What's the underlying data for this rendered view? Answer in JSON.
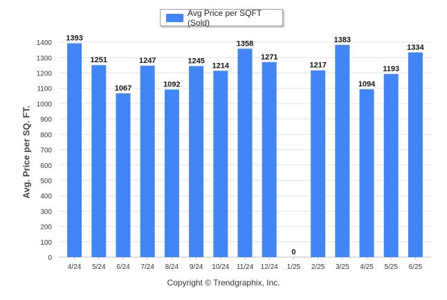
{
  "chart_data": {
    "type": "bar",
    "title": "",
    "xlabel": "",
    "ylabel": "Avg. Price per SQ. FT.",
    "ylim": [
      0,
      1450
    ],
    "yticks": [
      0,
      100,
      200,
      300,
      400,
      500,
      600,
      700,
      800,
      900,
      1000,
      1100,
      1200,
      1300,
      1400
    ],
    "grid": true,
    "legend_position": "top-center",
    "categories": [
      "4/24",
      "5/24",
      "6/24",
      "7/24",
      "8/24",
      "9/24",
      "10/24",
      "11/24",
      "12/24",
      "1/25",
      "2/25",
      "3/25",
      "4/25",
      "5/25",
      "6/25"
    ],
    "series": [
      {
        "name": "Avg Price per SQFT (Sold)",
        "color": "#4285f4",
        "values": [
          1393,
          1251,
          1067,
          1247,
          1092,
          1245,
          1214,
          1358,
          1271,
          0,
          1217,
          1383,
          1094,
          1193,
          1334
        ]
      }
    ]
  },
  "footer": {
    "copyright": "Copyright © Trendgraphix, Inc."
  }
}
